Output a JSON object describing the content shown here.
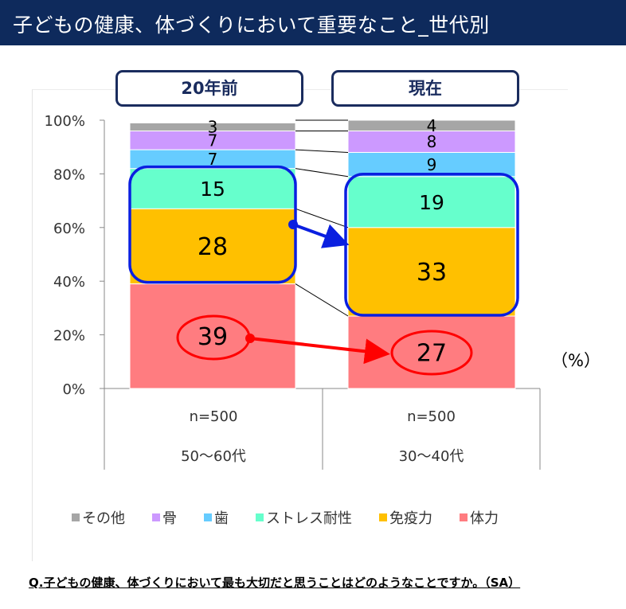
{
  "title": "子どもの健康、体づくりにおいて重要なこと_世代別",
  "headers": [
    "20年前",
    "現在"
  ],
  "unit_label": "（%）",
  "question": "Q.子どもの健康、体づくりにおいて最も大切だと思うことはどのようなことですか。（SA）",
  "chart_data": {
    "type": "bar",
    "stacked": true,
    "y_tick_labels": [
      "0%",
      "20%",
      "40%",
      "60%",
      "80%",
      "100%"
    ],
    "ylim": [
      0,
      100
    ],
    "categories": [
      {
        "group": "50〜60代",
        "n": "n=500"
      },
      {
        "group": "30〜40代",
        "n": "n=500"
      }
    ],
    "series": [
      {
        "name": "体力",
        "color": "#ff7c80",
        "values": [
          39,
          27
        ]
      },
      {
        "name": "免疫力",
        "color": "#ffc000",
        "values": [
          28,
          33
        ]
      },
      {
        "name": "ストレス耐性",
        "color": "#66ffcc",
        "values": [
          15,
          19
        ]
      },
      {
        "name": "歯",
        "color": "#66ccff",
        "values": [
          7,
          9
        ]
      },
      {
        "name": "骨",
        "color": "#cc99ff",
        "values": [
          7,
          8
        ]
      },
      {
        "name": "その他",
        "color": "#a6a6a6",
        "values": [
          3,
          4
        ]
      }
    ],
    "legend_order": [
      "その他",
      "骨",
      "歯",
      "ストレス耐性",
      "免疫力",
      "体力"
    ],
    "legend_position": "bottom",
    "highlight_colors": {
      "box": "#0a1fe0",
      "oval": "#ff0000"
    }
  }
}
